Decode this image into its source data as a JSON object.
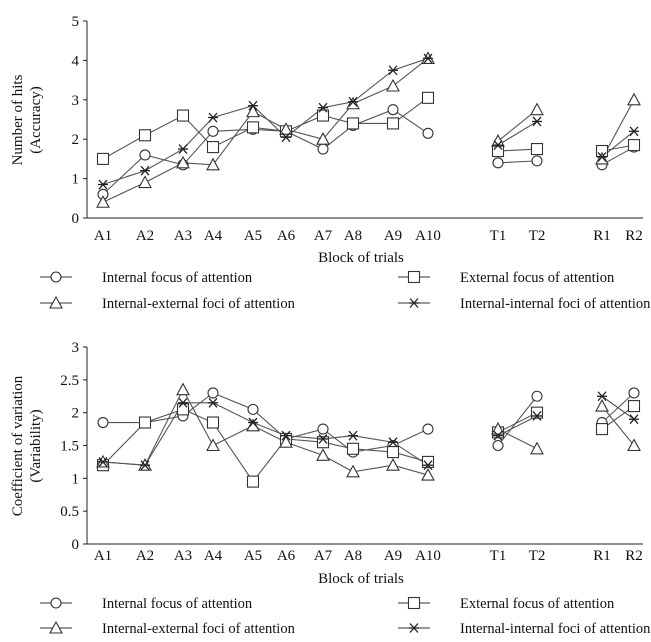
{
  "chart_data": [
    {
      "type": "line",
      "xlabel": "Block of trials",
      "ylabel": [
        "Number of hits",
        "(Accuracy)"
      ],
      "categories": [
        "A1",
        "A2",
        "A3",
        "A4",
        "A5",
        "A6",
        "A7",
        "A8",
        "A9",
        "A10",
        "T1",
        "T2",
        "R1",
        "R2"
      ],
      "segments": [
        [
          0,
          9
        ],
        [
          10,
          11
        ],
        [
          12,
          13
        ]
      ],
      "ylim": [
        0,
        5
      ],
      "yticks": [
        "0",
        "1",
        "2",
        "3",
        "4",
        "5"
      ],
      "series": [
        {
          "name": "Internal focus of attention",
          "marker": "circle",
          "values": [
            0.6,
            1.6,
            1.35,
            2.2,
            2.25,
            2.2,
            1.75,
            2.35,
            2.75,
            2.15,
            1.4,
            1.45,
            1.35,
            1.8
          ]
        },
        {
          "name": "External focus of attention",
          "marker": "square",
          "values": [
            1.5,
            2.1,
            2.6,
            1.8,
            2.3,
            2.2,
            2.6,
            2.4,
            2.4,
            3.05,
            1.7,
            1.75,
            1.7,
            1.85
          ]
        },
        {
          "name": "Internal-external foci of attention",
          "marker": "triangle",
          "values": [
            0.4,
            0.9,
            1.4,
            1.35,
            2.7,
            2.25,
            2.0,
            2.9,
            3.35,
            4.05,
            1.95,
            2.75,
            1.5,
            3.0
          ]
        },
        {
          "name": "Internal-internal foci of attention",
          "marker": "star",
          "values": [
            0.85,
            1.2,
            1.75,
            2.55,
            2.85,
            2.05,
            2.8,
            2.95,
            3.75,
            4.05,
            1.85,
            2.45,
            1.55,
            2.2
          ]
        }
      ]
    },
    {
      "type": "line",
      "xlabel": "Block of trials",
      "ylabel": [
        "Coefficient  of  variation",
        "(Variability)"
      ],
      "categories": [
        "A1",
        "A2",
        "A3",
        "A4",
        "A5",
        "A6",
        "A7",
        "A8",
        "A9",
        "A10",
        "T1",
        "T2",
        "R1",
        "R2"
      ],
      "segments": [
        [
          0,
          9
        ],
        [
          10,
          11
        ],
        [
          12,
          13
        ]
      ],
      "ylim": [
        0,
        3
      ],
      "yticks": [
        "0",
        "0.5",
        "1",
        "1.5",
        "2",
        "2.5",
        "3"
      ],
      "series": [
        {
          "name": "Internal focus of attention",
          "marker": "circle",
          "values": [
            1.85,
            1.85,
            1.95,
            2.3,
            2.05,
            1.6,
            1.75,
            1.4,
            1.5,
            1.75,
            1.5,
            2.25,
            1.85,
            2.3
          ]
        },
        {
          "name": "External focus of attention",
          "marker": "square",
          "values": [
            1.2,
            1.85,
            2.05,
            1.85,
            0.95,
            1.6,
            1.55,
            1.45,
            1.4,
            1.25,
            1.7,
            2.0,
            1.75,
            2.1
          ]
        },
        {
          "name": "Internal-external foci of attention",
          "marker": "triangle",
          "values": [
            1.25,
            1.2,
            2.35,
            1.5,
            1.8,
            1.55,
            1.35,
            1.1,
            1.2,
            1.05,
            1.75,
            1.45,
            2.1,
            1.5
          ]
        },
        {
          "name": "Internal-internal foci of attention",
          "marker": "star",
          "values": [
            1.25,
            1.2,
            2.15,
            2.15,
            1.85,
            1.65,
            1.6,
            1.65,
            1.55,
            1.2,
            1.65,
            1.95,
            2.25,
            1.9
          ]
        }
      ]
    }
  ]
}
